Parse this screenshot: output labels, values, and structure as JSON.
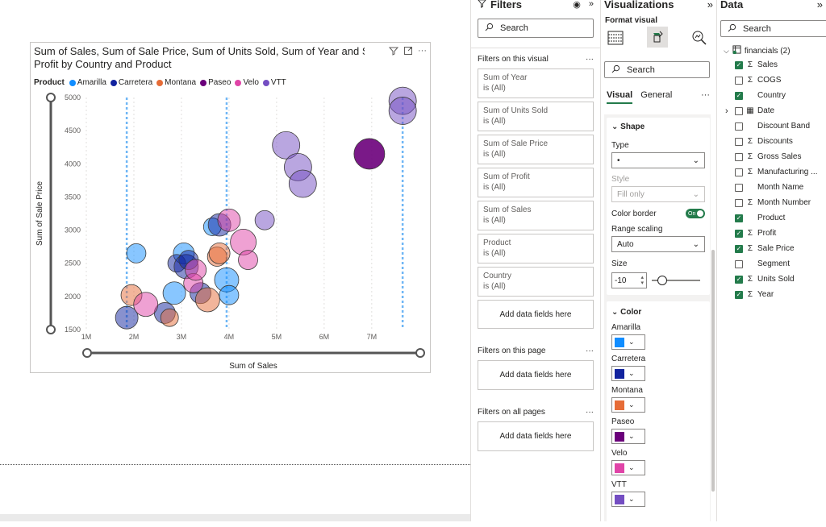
{
  "visual": {
    "title_line1": "Sum of Sales, Sum of Sale Price, Sum of Units Sold, Sum of Year and Su",
    "title_line2": "Profit by Country and Product",
    "legend_title": "Product"
  },
  "chart_data": {
    "type": "scatter",
    "xlabel": "Sum of Sales",
    "ylabel": "Sum of Sale Price",
    "xlim": [
      1000000,
      7800000
    ],
    "ylim": [
      1500,
      5000
    ],
    "x_ticks": [
      "1M",
      "2M",
      "3M",
      "4M",
      "5M",
      "6M",
      "7M"
    ],
    "y_ticks": [
      "1500",
      "2000",
      "2500",
      "3000",
      "3500",
      "4000",
      "4500",
      "5000"
    ],
    "play_lines_x": [
      1850000,
      3950000,
      7650000
    ],
    "series": [
      {
        "name": "Amarilla",
        "color": "#118dff",
        "points": [
          [
            2050000,
            2650
          ],
          [
            2850000,
            2050
          ],
          [
            3050000,
            2650
          ],
          [
            3650000,
            3050
          ],
          [
            3950000,
            2250
          ],
          [
            4000000,
            2020
          ]
        ]
      },
      {
        "name": "Carretera",
        "color": "#12239e",
        "points": [
          [
            1850000,
            1680
          ],
          [
            2650000,
            1750
          ],
          [
            2900000,
            2500
          ],
          [
            3100000,
            2450
          ],
          [
            3150000,
            2550
          ],
          [
            3400000,
            2050
          ],
          [
            3800000,
            3080
          ]
        ]
      },
      {
        "name": "Montana",
        "color": "#e66c37",
        "points": [
          [
            1950000,
            2020
          ],
          [
            2750000,
            1680
          ],
          [
            3550000,
            1950
          ],
          [
            3750000,
            2600
          ],
          [
            3800000,
            2650
          ]
        ]
      },
      {
        "name": "Paseo",
        "color": "#6b007b",
        "points": [
          [
            6950000,
            4150
          ]
        ]
      },
      {
        "name": "Velo",
        "color": "#e044a7",
        "points": [
          [
            2250000,
            1880
          ],
          [
            3250000,
            2200
          ],
          [
            3300000,
            2400
          ],
          [
            4000000,
            3150
          ],
          [
            4300000,
            2820
          ],
          [
            4400000,
            2550
          ]
        ]
      },
      {
        "name": "VTT",
        "color": "#744ec2",
        "points": [
          [
            4750000,
            3150
          ],
          [
            5200000,
            4280
          ],
          [
            5450000,
            3950
          ],
          [
            5550000,
            3700
          ],
          [
            7650000,
            4950
          ],
          [
            7650000,
            4800
          ]
        ]
      }
    ]
  },
  "filters": {
    "title": "Filters",
    "search_placeholder": "Search",
    "on_visual_label": "Filters on this visual",
    "cards": [
      {
        "name": "Sum of Year",
        "state": "is (All)"
      },
      {
        "name": "Sum of Units Sold",
        "state": "is (All)"
      },
      {
        "name": "Sum of Sale Price",
        "state": "is (All)"
      },
      {
        "name": "Sum of Profit",
        "state": "is (All)"
      },
      {
        "name": "Sum of Sales",
        "state": "is (All)"
      },
      {
        "name": "Product",
        "state": "is (All)"
      },
      {
        "name": "Country",
        "state": "is (All)"
      }
    ],
    "add_fields": "Add data fields here",
    "on_page_label": "Filters on this page",
    "on_all_pages_label": "Filters on all pages",
    "more": "···"
  },
  "viz": {
    "title": "Visualizations",
    "format_label": "Format visual",
    "search_placeholder": "Search",
    "tab_visual": "Visual",
    "tab_general": "General",
    "shape_header": "Shape",
    "type_label": "Type",
    "type_value": "•",
    "style_label": "Style",
    "style_value": "Fill only",
    "color_border_label": "Color border",
    "toggle_on": "On",
    "range_scaling_label": "Range scaling",
    "range_scaling_value": "Auto",
    "size_label": "Size",
    "size_value": "-10",
    "size_slider_level": 0.15,
    "color_header": "Color",
    "colors": [
      {
        "name": "Amarilla",
        "hex": "#118dff"
      },
      {
        "name": "Carretera",
        "hex": "#12239e"
      },
      {
        "name": "Montana",
        "hex": "#e66c37"
      },
      {
        "name": "Paseo",
        "hex": "#6b007b"
      },
      {
        "name": "Velo",
        "hex": "#e044a7"
      },
      {
        "name": "VTT",
        "hex": "#744ec2"
      }
    ]
  },
  "data": {
    "title": "Data",
    "search_placeholder": "Search",
    "table_name": "financials (2)",
    "fields": [
      {
        "name": "Sales",
        "sigma": true,
        "checked": true
      },
      {
        "name": "COGS",
        "sigma": true,
        "checked": false
      },
      {
        "name": "Country",
        "sigma": false,
        "checked": true
      },
      {
        "name": "Date",
        "sigma": false,
        "checked": false,
        "calendar": true
      },
      {
        "name": "Discount Band",
        "sigma": false,
        "checked": false
      },
      {
        "name": "Discounts",
        "sigma": true,
        "checked": false
      },
      {
        "name": "Gross Sales",
        "sigma": true,
        "checked": false
      },
      {
        "name": "Manufacturing ...",
        "sigma": true,
        "checked": false
      },
      {
        "name": "Month Name",
        "sigma": false,
        "checked": false
      },
      {
        "name": "Month Number",
        "sigma": true,
        "checked": false
      },
      {
        "name": "Product",
        "sigma": false,
        "checked": true
      },
      {
        "name": "Profit",
        "sigma": true,
        "checked": true
      },
      {
        "name": "Sale Price",
        "sigma": true,
        "checked": true
      },
      {
        "name": "Segment",
        "sigma": false,
        "checked": false
      },
      {
        "name": "Units Sold",
        "sigma": true,
        "checked": true
      },
      {
        "name": "Year",
        "sigma": true,
        "checked": true
      }
    ]
  }
}
